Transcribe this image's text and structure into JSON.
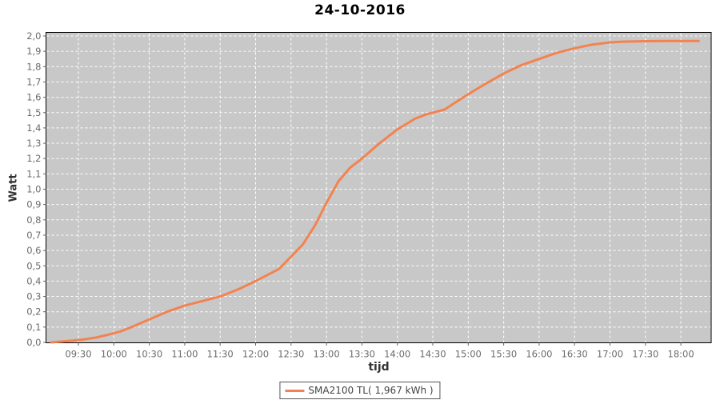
{
  "chart": {
    "title": "24-10-2016",
    "x_axis_label": "tijd",
    "y_axis_label": "Watt",
    "legend": {
      "label": "SMA2100 TL( 1,967 kWh )"
    },
    "colors": {
      "plot_background": "#c8c8c8",
      "plot_border": "#000000",
      "gridline": "#ffffff",
      "series": "#f28350",
      "tick_label": "#6b6b6b",
      "tick_mark": "#666666"
    }
  },
  "chart_data": {
    "type": "line",
    "title": "24-10-2016",
    "xlabel": "tijd",
    "ylabel": "Watt",
    "grid": true,
    "legend_position": "bottom",
    "ylim": [
      0.0,
      2.0
    ],
    "x_ticks": [
      "09:30",
      "10:00",
      "10:30",
      "11:00",
      "11:30",
      "12:00",
      "12:30",
      "13:00",
      "13:30",
      "14:00",
      "14:30",
      "15:00",
      "15:30",
      "16:00",
      "16:30",
      "17:00",
      "17:30",
      "18:00"
    ],
    "y_ticks": [
      {
        "label": "0,0",
        "value": 0.0
      },
      {
        "label": "0,1",
        "value": 0.1
      },
      {
        "label": "0,2",
        "value": 0.2
      },
      {
        "label": "0,3",
        "value": 0.3
      },
      {
        "label": "0,4",
        "value": 0.4
      },
      {
        "label": "0,5",
        "value": 0.5
      },
      {
        "label": "0,6",
        "value": 0.6
      },
      {
        "label": "0,7",
        "value": 0.7
      },
      {
        "label": "0,8",
        "value": 0.8
      },
      {
        "label": "0,9",
        "value": 0.9
      },
      {
        "label": "1,0",
        "value": 1.0
      },
      {
        "label": "1,1",
        "value": 1.1
      },
      {
        "label": "1,2",
        "value": 1.2
      },
      {
        "label": "1,3",
        "value": 1.3
      },
      {
        "label": "1,4",
        "value": 1.4
      },
      {
        "label": "1,5",
        "value": 1.5
      },
      {
        "label": "1,6",
        "value": 1.6
      },
      {
        "label": "1,7",
        "value": 1.7
      },
      {
        "label": "1,8",
        "value": 1.8
      },
      {
        "label": "1,9",
        "value": 1.9
      },
      {
        "label": "2,0",
        "value": 2.0
      }
    ],
    "series": [
      {
        "name": "SMA2100 TL( 1,967 kWh )",
        "color": "#f28350",
        "total_kwh": "1,967",
        "points": [
          [
            "09:07",
            0.0
          ],
          [
            "09:15",
            0.005
          ],
          [
            "09:25",
            0.012
          ],
          [
            "09:35",
            0.02
          ],
          [
            "09:45",
            0.032
          ],
          [
            "09:55",
            0.05
          ],
          [
            "10:05",
            0.07
          ],
          [
            "10:15",
            0.1
          ],
          [
            "10:30",
            0.15
          ],
          [
            "10:45",
            0.2
          ],
          [
            "11:00",
            0.24
          ],
          [
            "11:15",
            0.27
          ],
          [
            "11:30",
            0.3
          ],
          [
            "11:45",
            0.345
          ],
          [
            "12:00",
            0.4
          ],
          [
            "12:10",
            0.44
          ],
          [
            "12:20",
            0.48
          ],
          [
            "12:30",
            0.56
          ],
          [
            "12:40",
            0.64
          ],
          [
            "12:50",
            0.76
          ],
          [
            "13:00",
            0.91
          ],
          [
            "13:05",
            0.98
          ],
          [
            "13:10",
            1.05
          ],
          [
            "13:20",
            1.14
          ],
          [
            "13:30",
            1.2
          ],
          [
            "13:45",
            1.3
          ],
          [
            "14:00",
            1.39
          ],
          [
            "14:15",
            1.46
          ],
          [
            "14:25",
            1.49
          ],
          [
            "14:40",
            1.52
          ],
          [
            "14:50",
            1.57
          ],
          [
            "15:00",
            1.62
          ],
          [
            "15:15",
            1.69
          ],
          [
            "15:30",
            1.755
          ],
          [
            "15:45",
            1.81
          ],
          [
            "16:00",
            1.85
          ],
          [
            "16:15",
            1.89
          ],
          [
            "16:30",
            1.92
          ],
          [
            "16:45",
            1.944
          ],
          [
            "17:00",
            1.958
          ],
          [
            "17:10",
            1.963
          ],
          [
            "17:30",
            1.966
          ],
          [
            "17:45",
            1.967
          ],
          [
            "18:00",
            1.967
          ],
          [
            "18:15",
            1.967
          ]
        ]
      }
    ]
  }
}
